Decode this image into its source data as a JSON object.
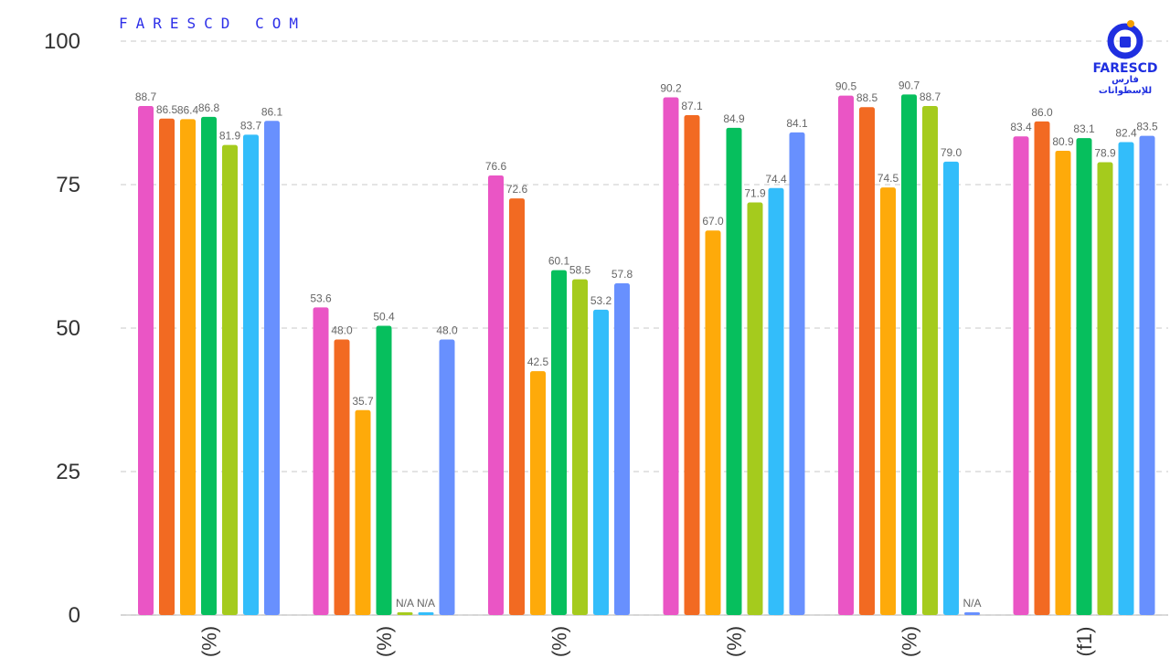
{
  "watermark": "FARESCD COM",
  "logo": {
    "name": "FARESCD",
    "arabic": "فارس للإسطوانات",
    "icon": "faresCD-logo-icon"
  },
  "chart_data": {
    "type": "bar",
    "categories": [
      "(%)",
      "(%)",
      "(%)",
      "(%)",
      "(%)",
      "(f1)"
    ],
    "ylim": [
      0,
      100
    ],
    "yticks": [
      0,
      25,
      50,
      75,
      100
    ],
    "grid": true,
    "series": [
      {
        "color": "#ea55c5",
        "values": [
          88.7,
          53.6,
          76.6,
          90.2,
          90.5,
          83.4
        ],
        "labels": [
          "88.7",
          "53.6",
          "76.6",
          "90.2",
          "90.5",
          "83.4"
        ]
      },
      {
        "color": "#f26a22",
        "values": [
          86.5,
          48.0,
          72.6,
          87.1,
          88.5,
          86.0
        ],
        "labels": [
          "86.5",
          "48.0",
          "72.6",
          "87.1",
          "88.5",
          "86.0"
        ]
      },
      {
        "color": "#feaa0a",
        "values": [
          86.4,
          35.7,
          42.5,
          67.0,
          74.5,
          80.9
        ],
        "labels": [
          "86.4",
          "35.7",
          "42.5",
          "67.0",
          "74.5",
          "80.9"
        ]
      },
      {
        "color": "#06bf5d",
        "values": [
          86.8,
          50.4,
          60.1,
          84.9,
          90.7,
          83.1
        ],
        "labels": [
          "86.8",
          "50.4",
          "60.1",
          "84.9",
          "90.7",
          "83.1"
        ]
      },
      {
        "color": "#a5cb1d",
        "values": [
          81.9,
          null,
          58.5,
          71.9,
          88.7,
          78.9
        ],
        "labels": [
          "81.9",
          "N/A",
          "58.5",
          "71.9",
          "88.7",
          "78.9"
        ]
      },
      {
        "color": "#33bdfa",
        "values": [
          83.7,
          null,
          53.2,
          74.4,
          79.0,
          82.4
        ],
        "labels": [
          "83.7",
          "N/A",
          "53.2",
          "74.4",
          "79.0",
          "82.4"
        ]
      },
      {
        "color": "#6890fe",
        "values": [
          86.1,
          48.0,
          57.8,
          84.1,
          null,
          83.5
        ],
        "labels": [
          "86.1",
          "48.0",
          "57.8",
          "84.1",
          "N/A",
          "83.5"
        ]
      }
    ]
  }
}
